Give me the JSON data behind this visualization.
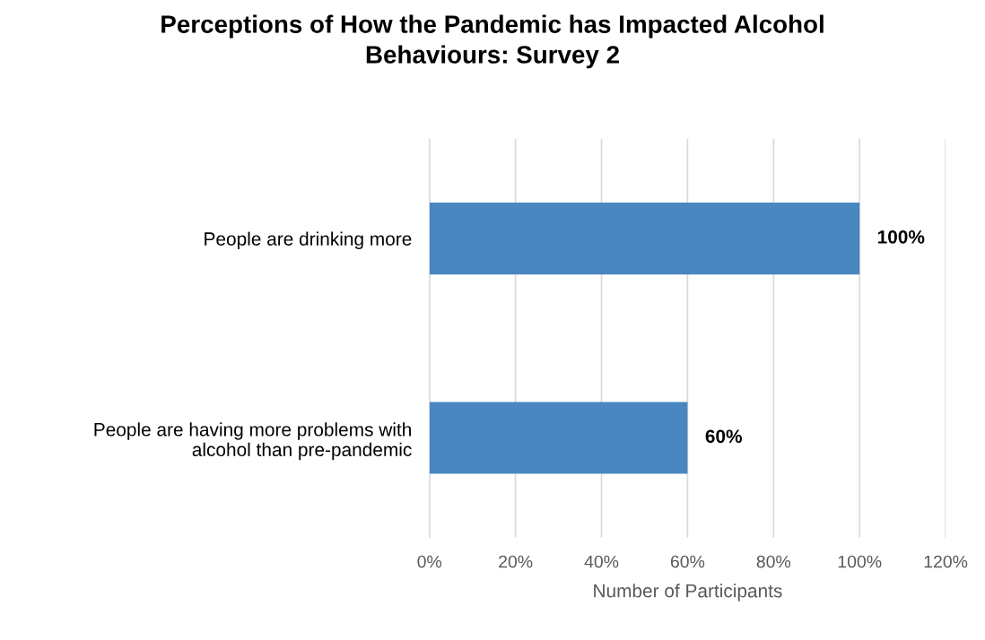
{
  "chart_data": {
    "type": "bar",
    "orientation": "horizontal",
    "title": "Perceptions of How the Pandemic has Impacted Alcohol Behaviours: Survey 2",
    "xlabel": "Number of Participants",
    "categories": [
      "People are drinking more",
      "People are having more problems with alcohol than pre-pandemic"
    ],
    "values": [
      100,
      60
    ],
    "value_labels": [
      "100%",
      "60%"
    ],
    "color": "#4a86c0",
    "xlim": [
      0,
      120
    ],
    "xticks": [
      {
        "value": 0,
        "label": "0%"
      },
      {
        "value": 20,
        "label": "20%"
      },
      {
        "value": 40,
        "label": "40%"
      },
      {
        "value": 60,
        "label": "60%"
      },
      {
        "value": 80,
        "label": "80%"
      },
      {
        "value": 100,
        "label": "100%"
      },
      {
        "value": 120,
        "label": "120%"
      }
    ],
    "grid": "x",
    "legend": false
  }
}
